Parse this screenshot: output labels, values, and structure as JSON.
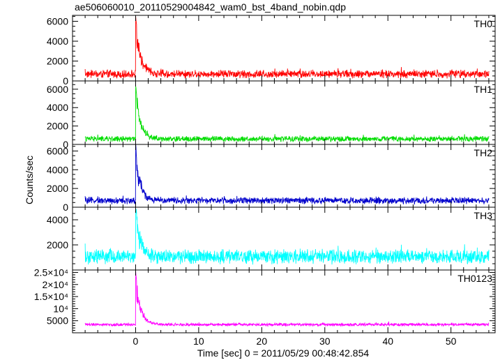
{
  "title": "ae506060010_20110529004842_wam0_bst_4band_nobin.qdp",
  "xlabel": "Time [sec] 0 = 2011/05/29 00:48:42.854",
  "ylabel": "Counts/sec",
  "chart_data": {
    "type": "line",
    "title": "ae506060010_20110529004842_wam0_bst_4band_nobin.qdp",
    "xlabel": "Time [sec] 0 = 2011/05/29 00:48:42.854",
    "ylabel": "Counts/sec",
    "xlim": [
      -10,
      57
    ],
    "x_ticks": [
      {
        "value": 0,
        "label": "0"
      },
      {
        "value": 10,
        "label": "10"
      },
      {
        "value": 20,
        "label": "20"
      },
      {
        "value": 30,
        "label": "30"
      },
      {
        "value": 40,
        "label": "40"
      },
      {
        "value": 50,
        "label": "50"
      }
    ],
    "x_minor_step": 2,
    "panels": [
      {
        "name": "TH0",
        "color": "#ff0000",
        "ylim": [
          0,
          6600
        ],
        "y_ticks": [
          {
            "value": 0,
            "label": "0"
          },
          {
            "value": 2000,
            "label": "2000"
          },
          {
            "value": 4000,
            "label": "4000"
          },
          {
            "value": 6000,
            "label": "6000"
          }
        ],
        "y_minor_step": 500,
        "series": {
          "x_range": [
            -8,
            56
          ],
          "baseline": 700,
          "noise": 420,
          "burst_time": 0,
          "peak": 6500,
          "decay_tau": 0.8
        }
      },
      {
        "name": "TH1",
        "color": "#00dd00",
        "ylim": [
          0,
          6900
        ],
        "y_ticks": [
          {
            "value": 0,
            "label": "0"
          },
          {
            "value": 2000,
            "label": "2000"
          },
          {
            "value": 4000,
            "label": "4000"
          },
          {
            "value": 6000,
            "label": "6000"
          }
        ],
        "y_minor_step": 500,
        "series": {
          "x_range": [
            -8,
            56
          ],
          "baseline": 600,
          "noise": 320,
          "burst_time": 0,
          "peak": 6500,
          "decay_tau": 0.8
        }
      },
      {
        "name": "TH2",
        "color": "#0000cc",
        "ylim": [
          0,
          6700
        ],
        "y_ticks": [
          {
            "value": 0,
            "label": "0"
          },
          {
            "value": 2000,
            "label": "2000"
          },
          {
            "value": 4000,
            "label": "4000"
          },
          {
            "value": 6000,
            "label": "6000"
          }
        ],
        "y_minor_step": 500,
        "series": {
          "x_range": [
            -8,
            56
          ],
          "baseline": 700,
          "noise": 380,
          "burst_time": 0,
          "peak": 6500,
          "decay_tau": 0.8
        }
      },
      {
        "name": "TH3",
        "color": "#00ffff",
        "ylim": [
          0,
          5000
        ],
        "y_ticks": [
          {
            "value": 2000,
            "label": "2000"
          },
          {
            "value": 4000,
            "label": "4000"
          }
        ],
        "y_minor_step": 500,
        "series": {
          "x_range": [
            -8,
            56
          ],
          "baseline": 1050,
          "noise": 600,
          "burst_time": 0,
          "peak": 5000,
          "decay_tau": 0.8
        }
      },
      {
        "name": "TH0123",
        "color": "#ff00ff",
        "ylim": [
          0,
          26000
        ],
        "y_ticks": [
          {
            "value": 5000,
            "label": "5000"
          },
          {
            "value": 10000,
            "label": "10⁴"
          },
          {
            "value": 15000,
            "label": "1.5×10⁴"
          },
          {
            "value": 20000,
            "label": "2×10⁴"
          },
          {
            "value": 25000,
            "label": "2.5×10⁴"
          }
        ],
        "y_minor_step": 1000,
        "series": {
          "x_range": [
            -8,
            56
          ],
          "baseline": 3400,
          "noise": 650,
          "burst_time": 0,
          "peak": 25500,
          "decay_tau": 0.8
        }
      }
    ]
  }
}
